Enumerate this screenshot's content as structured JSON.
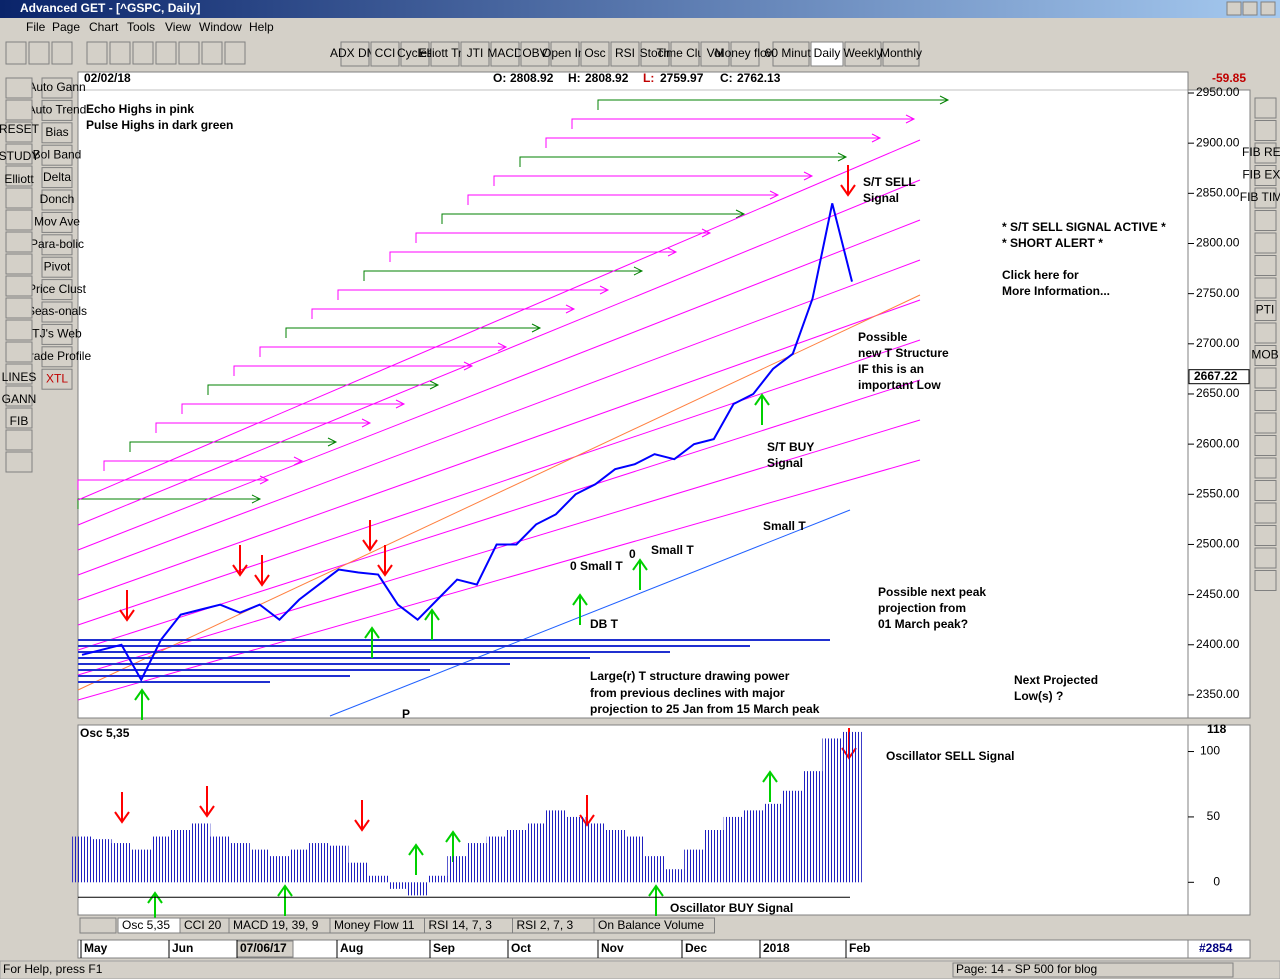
{
  "window": {
    "title": "Advanced GET - [^GSPC, Daily]",
    "menu": [
      "File",
      "Page",
      "Chart",
      "Tools",
      "View",
      "Window",
      "Help"
    ],
    "toolbar": [
      "ADX DMI",
      "CCI",
      "Cycles",
      "Elliott Trig",
      "JTI",
      "MACD",
      "OBV",
      "Open Int",
      "Osc",
      "RSI",
      "Stoch",
      "Time Clust",
      "Vol",
      "Money flow",
      "60 Minute",
      "Daily",
      "Weekly",
      "Monthly"
    ],
    "left_tools": [
      "Auto Gann",
      "Auto Trend",
      "Bias",
      "Bol Band",
      "Delta",
      "Donch",
      "Mov Ave",
      "Para-bolic",
      "Pivot",
      "Price Clust",
      "Seas-onals",
      "TJ's Web",
      "Trade Profile",
      "XTL"
    ],
    "icon_labels": [
      "STUDY",
      "RESET",
      "Elliott",
      "LINES",
      "GANN",
      "FIB"
    ],
    "right_tools": [
      "FIB RET",
      "FIB EXT",
      "FIB TIME",
      "PTI",
      "MOB"
    ],
    "status_left": "For Help, press F1",
    "status_right": "Page: 14 - SP 500 for blog"
  },
  "chart": {
    "date": "02/02/18",
    "ohlc": [
      {
        "label": "O:",
        "value": 2808.92
      },
      {
        "label": "H:",
        "value": 2808.92
      },
      {
        "label": "L:",
        "value": 2759.97
      },
      {
        "label": "C:",
        "value": 2762.13
      }
    ],
    "change": -59.85,
    "ylim": [
      2327,
      2953
    ],
    "yticks": [
      {
        "value": 2350,
        "label": "2350.00"
      },
      {
        "value": 2400,
        "label": "2400.00"
      },
      {
        "value": 2450,
        "label": "2450.00"
      },
      {
        "value": 2500,
        "label": "2500.00"
      },
      {
        "value": 2550,
        "label": "2550.00"
      },
      {
        "value": 2600,
        "label": "2600.00"
      },
      {
        "value": 2650,
        "label": "2650.00"
      },
      {
        "value": 2700,
        "label": "2700.00"
      },
      {
        "value": 2750,
        "label": "2750.00"
      },
      {
        "value": 2800,
        "label": "2800.00"
      },
      {
        "value": 2850,
        "label": "2850.00"
      },
      {
        "value": 2900,
        "label": "2900.00"
      },
      {
        "value": 2950,
        "label": "2950.00"
      }
    ],
    "price_marker": 2667.22,
    "closes": [
      2390,
      2395,
      2400,
      2365,
      2405,
      2430,
      2435,
      2440,
      2432,
      2440,
      2425,
      2445,
      2460,
      2475,
      2472,
      2470,
      2440,
      2425,
      2445,
      2465,
      2460,
      2500,
      2500,
      2520,
      2530,
      2550,
      2560,
      2575,
      2580,
      2590,
      2585,
      2600,
      2605,
      2640,
      2650,
      2675,
      2690,
      2745,
      2840,
      2762
    ],
    "annotations": [
      "Echo Highs in pink",
      "Pulse Highs in dark green",
      "S/T SELL",
      "Signal",
      "* S/T SELL SIGNAL ACTIVE *",
      "* SHORT ALERT *",
      "Click here for",
      "More Information...",
      "Possible",
      "new T Structure",
      "IF this is an",
      "important Low",
      "S/T BUY",
      "Signal",
      "Small T",
      "0  Small  T",
      "0",
      "Small T",
      "DB T",
      "Possible next peak",
      "projection from",
      "01 March peak?",
      "Next Projected",
      "Low(s) ?",
      "Large(r) T structure drawing power",
      "from previous declines with major",
      "projection to 25 Jan from 15 March peak",
      "P"
    ],
    "months": [
      "May",
      "Jun",
      "07/06/17",
      "Aug",
      "Sep",
      "Oct",
      "Nov",
      "Dec",
      "2018",
      "Feb"
    ],
    "bar_count": "#2854"
  },
  "oscillator": {
    "title": "Osc 5,35",
    "ylim": [
      -25,
      118
    ],
    "yticks": [
      0,
      50,
      100
    ],
    "marker": 118,
    "values": [
      35,
      33,
      30,
      25,
      35,
      40,
      45,
      35,
      30,
      25,
      20,
      25,
      30,
      28,
      15,
      5,
      -5,
      -10,
      5,
      20,
      30,
      35,
      40,
      45,
      55,
      50,
      45,
      40,
      35,
      20,
      10,
      25,
      40,
      50,
      55,
      60,
      70,
      85,
      110,
      115
    ],
    "annotations": [
      "Oscillator SELL Signal",
      "Oscillator BUY Signal"
    ],
    "tabs": [
      "Osc 5,35",
      "CCI 20",
      "MACD 19, 39, 9",
      "Money Flow 11",
      "RSI 14, 7, 3",
      "RSI 2, 7, 3",
      "On Balance Volume"
    ]
  }
}
